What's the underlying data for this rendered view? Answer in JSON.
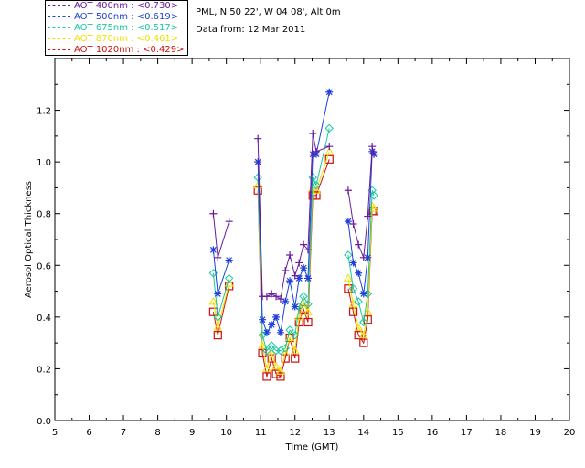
{
  "header": {
    "location": "PML, N 50 22', W 04 08', Alt 0m",
    "date": "Data from: 12 Mar 2011"
  },
  "chart_data": {
    "type": "line",
    "title": "",
    "xlabel": "Time (GMT)",
    "ylabel": "Aerosol Optical Thickness",
    "xlim": [
      5,
      20
    ],
    "ylim": [
      0.0,
      1.4
    ],
    "xticks": [
      "5",
      "6",
      "7",
      "8",
      "9",
      "10",
      "11",
      "12",
      "13",
      "14",
      "15",
      "16",
      "17",
      "18",
      "19",
      "20"
    ],
    "yticks": [
      "0.0",
      "0.2",
      "0.4",
      "0.6",
      "0.8",
      "1.0",
      "1.2"
    ],
    "grid": false,
    "legend_position": "top-left, outside plot",
    "series": [
      {
        "name": "AOT  400nm : <0.730>",
        "color": "#6a1b9a",
        "marker": "plus",
        "x": [
          9.62,
          9.75,
          10.08,
          10.92,
          11.05,
          11.18,
          11.32,
          11.45,
          11.58,
          11.72,
          11.85,
          12.0,
          12.12,
          12.25,
          12.38,
          12.52,
          12.62,
          13.0,
          13.55,
          13.7,
          13.85,
          14.0,
          14.12,
          14.25,
          14.3
        ],
        "y": [
          0.8,
          0.63,
          0.77,
          1.09,
          0.48,
          0.48,
          0.49,
          0.48,
          0.47,
          0.58,
          0.64,
          0.56,
          0.61,
          0.68,
          0.66,
          1.11,
          1.04,
          1.06,
          0.89,
          0.76,
          0.68,
          0.63,
          0.79,
          1.06,
          1.03
        ]
      },
      {
        "name": "AOT  500nm : <0.619>",
        "color": "#1e3fd8",
        "marker": "asterisk",
        "x": [
          9.62,
          9.75,
          10.08,
          10.92,
          11.05,
          11.18,
          11.32,
          11.45,
          11.58,
          11.72,
          11.85,
          12.0,
          12.12,
          12.25,
          12.38,
          12.52,
          12.62,
          13.0,
          13.55,
          13.7,
          13.85,
          14.0,
          14.12,
          14.25,
          14.3
        ],
        "y": [
          0.66,
          0.49,
          0.62,
          1.0,
          0.39,
          0.34,
          0.37,
          0.4,
          0.34,
          0.46,
          0.54,
          0.44,
          0.55,
          0.59,
          0.55,
          1.03,
          1.03,
          1.27,
          0.77,
          0.61,
          0.57,
          0.49,
          0.63,
          1.04,
          1.03
        ]
      },
      {
        "name": "AOT  675nm : <0.517>",
        "color": "#19c8a0",
        "marker": "diamond",
        "x": [
          9.62,
          9.75,
          10.08,
          10.92,
          11.05,
          11.18,
          11.32,
          11.45,
          11.58,
          11.72,
          11.85,
          12.0,
          12.12,
          12.25,
          12.38,
          12.52,
          12.62,
          13.0,
          13.55,
          13.7,
          13.85,
          14.0,
          14.12,
          14.25,
          14.3
        ],
        "y": [
          0.57,
          0.4,
          0.55,
          0.94,
          0.33,
          0.27,
          0.29,
          0.27,
          0.27,
          0.28,
          0.35,
          0.33,
          0.44,
          0.48,
          0.45,
          0.94,
          0.91,
          1.13,
          0.64,
          0.51,
          0.46,
          0.38,
          0.49,
          0.89,
          0.87
        ]
      },
      {
        "name": "AOT  870nm : <0.461>",
        "color": "#f0e000",
        "marker": "triangle",
        "x": [
          9.62,
          9.75,
          10.08,
          10.92,
          11.05,
          11.18,
          11.32,
          11.45,
          11.58,
          11.72,
          11.85,
          12.0,
          12.12,
          12.25,
          12.38,
          12.52,
          12.62,
          13.0,
          13.55,
          13.7,
          13.85,
          14.0,
          14.12,
          14.25,
          14.3
        ],
        "y": [
          0.46,
          0.36,
          0.53,
          0.91,
          0.29,
          0.2,
          0.26,
          0.21,
          0.19,
          0.26,
          0.32,
          0.27,
          0.4,
          0.45,
          0.42,
          0.9,
          0.89,
          1.04,
          0.55,
          0.45,
          0.36,
          0.33,
          0.42,
          0.83,
          0.82
        ]
      },
      {
        "name": "AOT 1020nm : <0.429>",
        "color": "#cc1010",
        "marker": "square",
        "x": [
          9.62,
          9.75,
          10.08,
          10.92,
          11.05,
          11.18,
          11.32,
          11.45,
          11.58,
          11.72,
          11.85,
          12.0,
          12.12,
          12.25,
          12.38,
          12.52,
          12.62,
          13.0,
          13.55,
          13.7,
          13.85,
          14.0,
          14.12,
          14.25,
          14.3
        ],
        "y": [
          0.42,
          0.33,
          0.52,
          0.89,
          0.26,
          0.17,
          0.24,
          0.18,
          0.17,
          0.24,
          0.32,
          0.24,
          0.38,
          0.43,
          0.38,
          0.87,
          0.87,
          1.01,
          0.51,
          0.42,
          0.33,
          0.3,
          0.39,
          0.81,
          0.81
        ]
      }
    ]
  }
}
